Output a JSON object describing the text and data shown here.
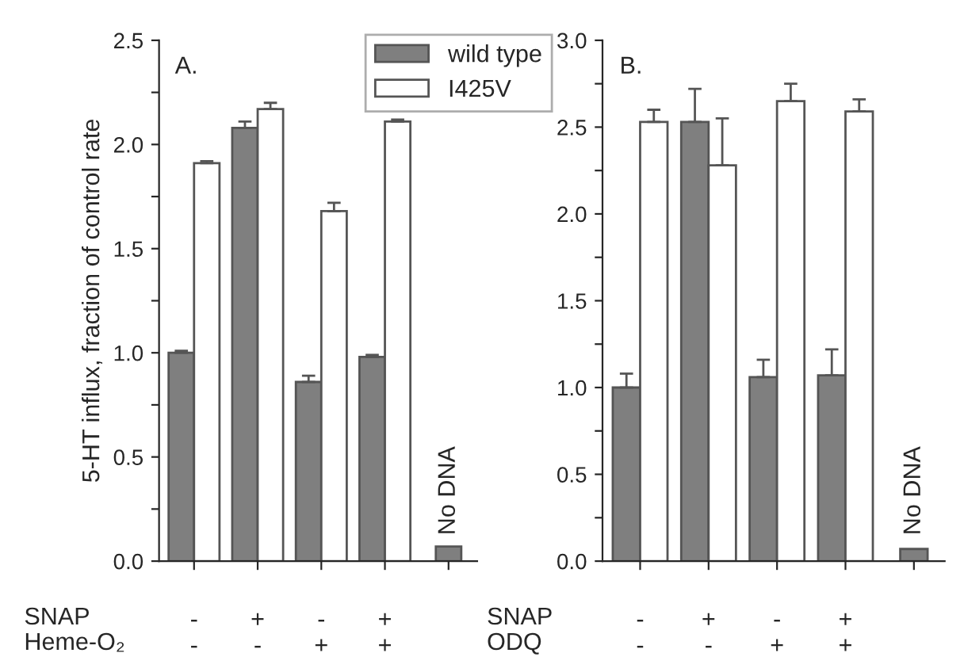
{
  "chart_data": [
    {
      "type": "bar",
      "title": "A.",
      "ylabel": "5-HT influx, fraction of control rate",
      "categories": [
        "-\n-",
        "+\n-",
        "-\n+",
        "+\n+",
        null
      ],
      "series": [
        {
          "name": "wild type",
          "color": "#7f7f7f",
          "values": [
            1.0,
            2.08,
            0.86,
            0.98,
            0.07
          ],
          "errors": [
            0.01,
            0.03,
            0.03,
            0.01,
            null
          ]
        },
        {
          "name": "I425V",
          "color": "#ffffff",
          "values": [
            1.91,
            2.17,
            1.68,
            2.11,
            null
          ],
          "errors": [
            0.01,
            0.03,
            0.04,
            0.01,
            null
          ]
        }
      ],
      "ylim": [
        0,
        2.5
      ],
      "yticks": [
        {
          "value": 0,
          "label": "0.0"
        },
        {
          "value": 0.25,
          "label": null
        },
        0.5,
        {
          "value": 0.75,
          "label": null
        },
        {
          "value": 1,
          "label": "1.0"
        },
        {
          "value": 1.25,
          "label": null
        },
        1.5,
        {
          "value": 1.75,
          "label": null
        },
        {
          "value": 2,
          "label": "2.0"
        },
        {
          "value": 2.25,
          "label": null
        },
        2.5
      ],
      "annotations": [
        "No DNA",
        "SNAP",
        "Heme-O₂"
      ],
      "legend": "top right",
      "grid": false
    },
    {
      "type": "bar",
      "title": "B.",
      "categories": [
        "-\n-",
        "+\n-",
        "-\n+",
        "+\n+",
        null
      ],
      "series": [
        {
          "color": "#7f7f7f",
          "values": [
            1.0,
            2.53,
            1.06,
            1.07,
            0.07
          ],
          "errors": [
            0.08,
            0.19,
            0.1,
            0.15,
            null
          ]
        },
        {
          "color": "#ffffff",
          "values": [
            2.53,
            2.28,
            2.65,
            2.59,
            null
          ],
          "errors": [
            0.07,
            0.27,
            0.1,
            0.07,
            null
          ]
        }
      ],
      "ylim": [
        0,
        3.0
      ],
      "yticks": [
        {
          "value": 0,
          "label": "0.0"
        },
        {
          "value": 0.25,
          "label": null
        },
        0.5,
        {
          "value": 0.75,
          "label": null
        },
        {
          "value": 1,
          "label": "1.0"
        },
        {
          "value": 1.25,
          "label": null
        },
        1.5,
        {
          "value": 1.75,
          "label": null
        },
        {
          "value": 2,
          "label": "2.0"
        },
        {
          "value": 2.25,
          "label": null
        },
        2.5,
        {
          "value": 2.75,
          "label": null
        },
        {
          "value": 3,
          "label": "3.0"
        }
      ],
      "annotations": [
        "No DNA",
        "SNAP",
        "ODQ"
      ],
      "legend": false,
      "grid": false
    }
  ]
}
